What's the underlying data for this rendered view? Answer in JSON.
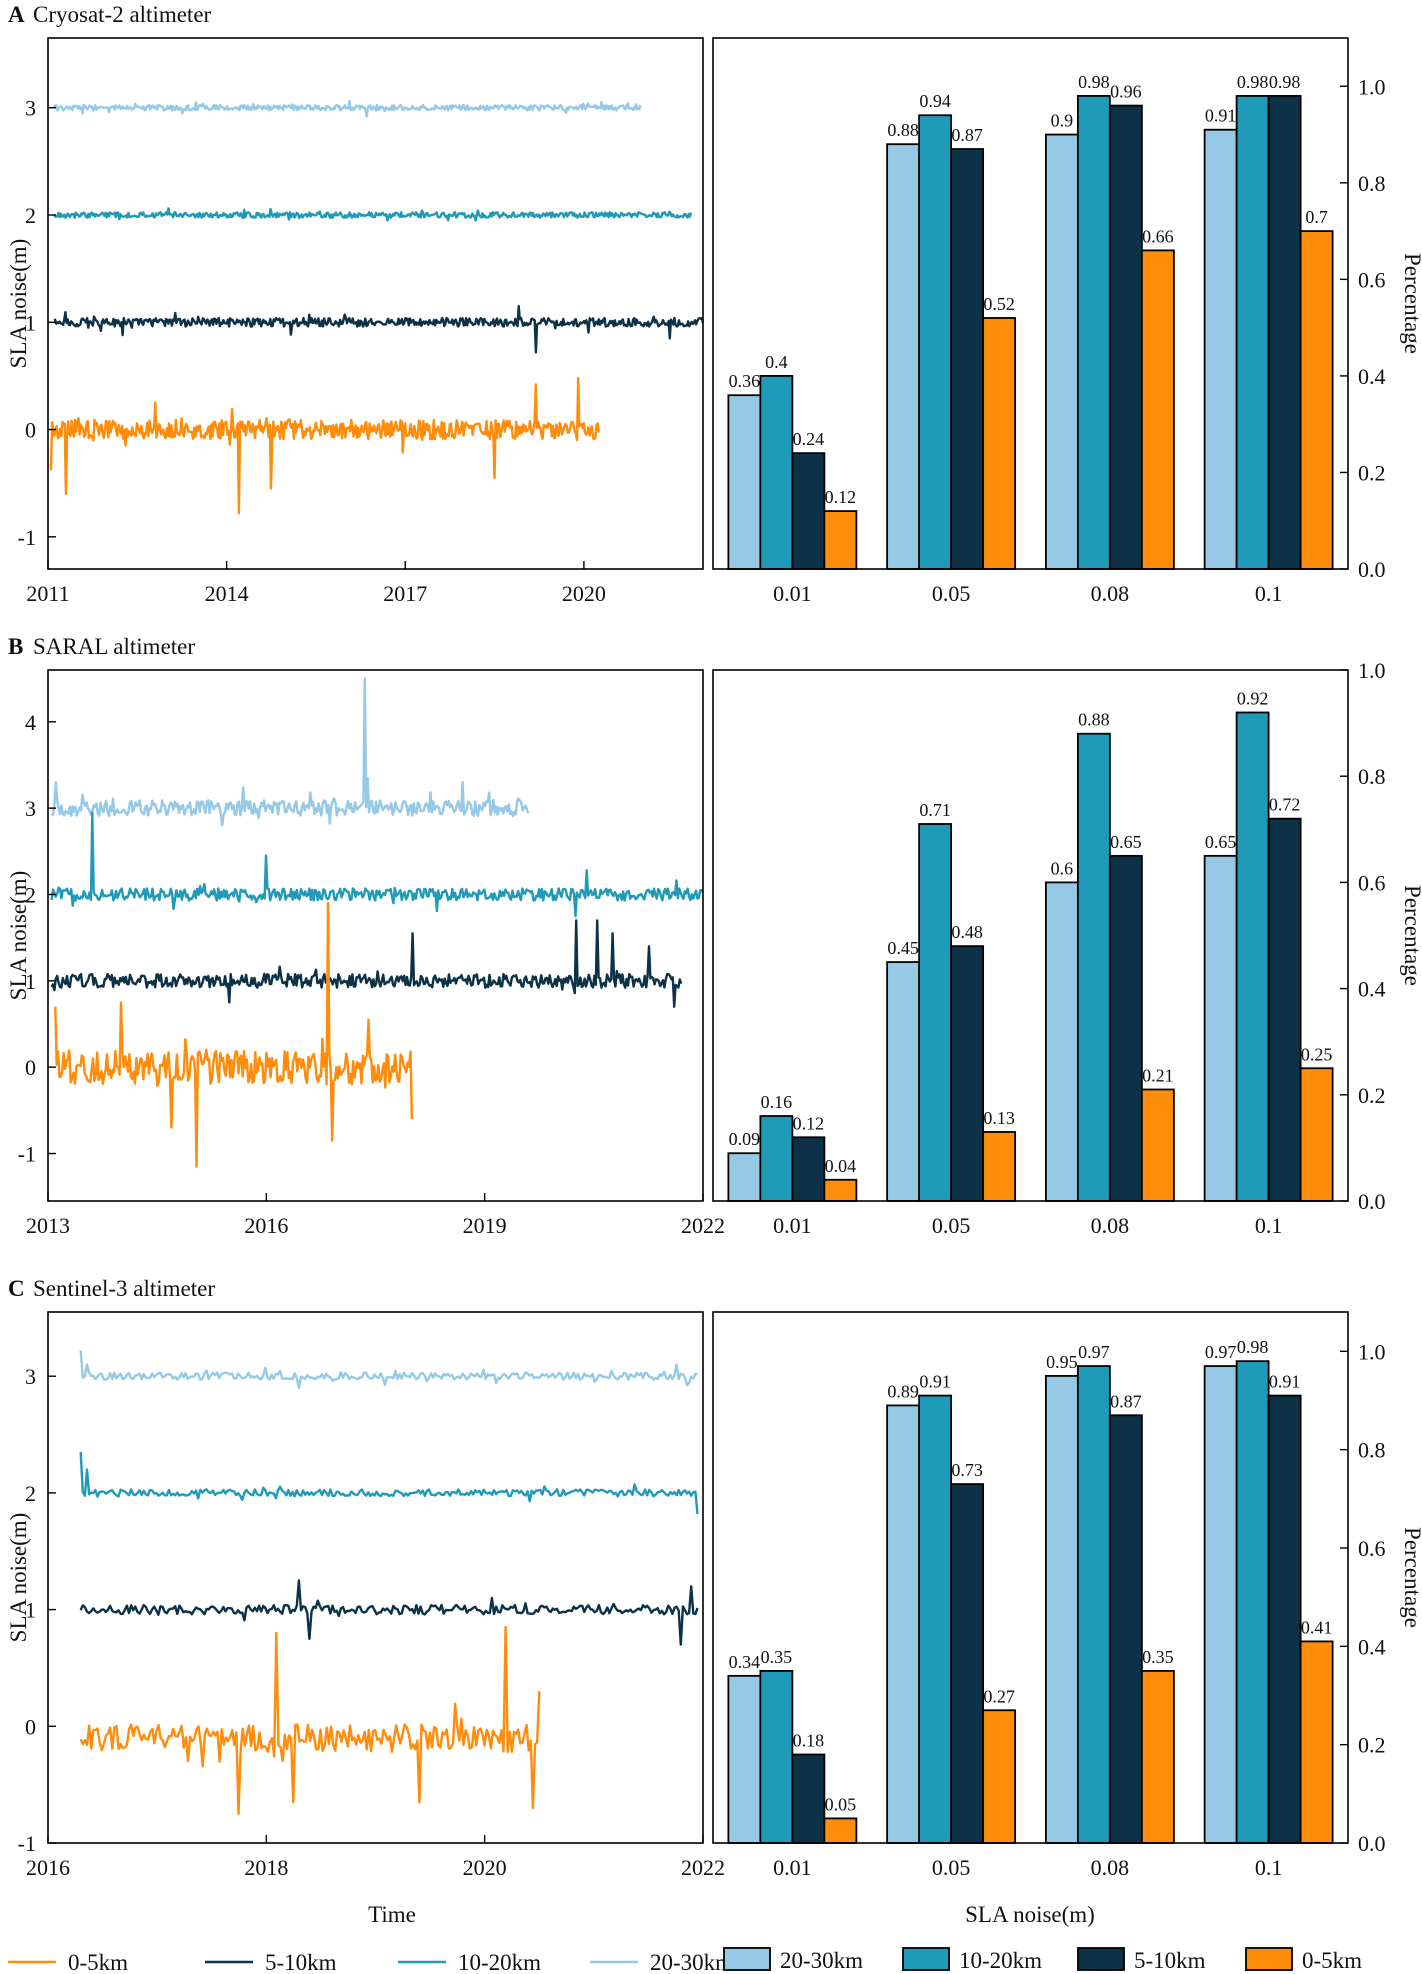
{
  "colors": {
    "c0_5": "#ff8c0a",
    "c5_10": "#0d3247",
    "c10_20": "#1f9ab8",
    "c20_30": "#96c9e6",
    "axis": "#000000"
  },
  "x_axis_title": "Time",
  "bar_x_axis_title": "SLA noise(m)",
  "legend": {
    "lines": [
      {
        "label": "0-5km",
        "color_key": "c0_5"
      },
      {
        "label": "5-10km",
        "color_key": "c5_10"
      },
      {
        "label": "10-20km",
        "color_key": "c10_20"
      },
      {
        "label": "20-30km",
        "color_key": "c20_30"
      }
    ],
    "bars": [
      {
        "label": "20-30km",
        "color_key": "c20_30"
      },
      {
        "label": "10-20km",
        "color_key": "c10_20"
      },
      {
        "label": "5-10km",
        "color_key": "c5_10"
      },
      {
        "label": "0-5km",
        "color_key": "c0_5"
      }
    ]
  },
  "chart_data": [
    {
      "panel": "A",
      "title": "Cryosat-2 altimeter",
      "line_chart": {
        "type": "line",
        "ylabel": "SLA noise(m)",
        "xlim": [
          2011,
          2022
        ],
        "xticks": [
          "2011",
          "2014",
          "2017",
          "2020"
        ],
        "xtick_values": [
          2011,
          2014,
          2017,
          2020
        ],
        "ylim": [
          -1.3,
          3.65
        ],
        "yticks": [
          "-1",
          "0",
          "1",
          "2",
          "3"
        ],
        "ytick_values": [
          -1,
          0,
          1,
          2,
          3
        ],
        "series": [
          {
            "name": "20-30km",
            "color_key": "c20_30",
            "start": 2011.1,
            "end": 2020.95,
            "baseline": 3.0,
            "noise": 0.025,
            "spikes": [
              [
                2016.35,
                -0.08
              ]
            ]
          },
          {
            "name": "10-20km",
            "color_key": "c10_20",
            "start": 2011.1,
            "end": 2021.8,
            "baseline": 2.0,
            "noise": 0.025,
            "spikes": []
          },
          {
            "name": "5-10km",
            "color_key": "c5_10",
            "start": 2011.1,
            "end": 2022.0,
            "baseline": 1.0,
            "noise": 0.04,
            "spikes": [
              [
                2012.25,
                -0.12
              ],
              [
                2018.9,
                0.15
              ],
              [
                2019.2,
                -0.28
              ],
              [
                2021.45,
                -0.15
              ]
            ]
          },
          {
            "name": "0-5km",
            "color_key": "c0_5",
            "start": 2011.05,
            "end": 2020.25,
            "baseline": 0.0,
            "noise": 0.09,
            "spikes": [
              [
                2011.05,
                -0.38
              ],
              [
                2011.3,
                -0.6
              ],
              [
                2014.2,
                -0.78
              ],
              [
                2014.75,
                -0.55
              ],
              [
                2018.5,
                -0.45
              ],
              [
                2019.2,
                0.42
              ],
              [
                2019.9,
                0.48
              ],
              [
                2012.8,
                0.25
              ]
            ]
          }
        ]
      },
      "bar_chart": {
        "type": "bar",
        "ylabel": "Percentage",
        "categories": [
          "0.01",
          "0.05",
          "0.08",
          "0.1"
        ],
        "ylim": [
          0.0,
          1.1
        ],
        "yticks": [
          "0.0",
          "0.2",
          "0.4",
          "0.6",
          "0.8",
          "1.0"
        ],
        "ytick_values": [
          0,
          0.2,
          0.4,
          0.6,
          0.8,
          1.0
        ],
        "series": [
          {
            "name": "20-30km",
            "color_key": "c20_30",
            "values": [
              0.36,
              0.88,
              0.9,
              0.91
            ],
            "labels": [
              "0.36",
              "0.88",
              "0.9",
              "0.91"
            ]
          },
          {
            "name": "10-20km",
            "color_key": "c10_20",
            "values": [
              0.4,
              0.94,
              0.98,
              0.98
            ],
            "labels": [
              "0.4",
              "0.94",
              "0.98",
              "0.98"
            ]
          },
          {
            "name": "5-10km",
            "color_key": "c5_10",
            "values": [
              0.24,
              0.87,
              0.96,
              0.98
            ],
            "labels": [
              "0.24",
              "0.87",
              "0.96",
              "0.98"
            ]
          },
          {
            "name": "0-5km",
            "color_key": "c0_5",
            "values": [
              0.12,
              0.52,
              0.66,
              0.7
            ],
            "labels": [
              "0.12",
              "0.52",
              "0.66",
              "0.7"
            ]
          }
        ]
      }
    },
    {
      "panel": "B",
      "title": "SARAL altimeter",
      "line_chart": {
        "type": "line",
        "ylabel": "SLA noise(m)",
        "xlim": [
          2013,
          2022
        ],
        "xticks": [
          "2013",
          "2016",
          "2019",
          "2022"
        ],
        "xtick_values": [
          2013,
          2016,
          2019,
          2022
        ],
        "ylim": [
          -1.55,
          4.6
        ],
        "yticks": [
          "-1",
          "0",
          "1",
          "2",
          "3",
          "4"
        ],
        "ytick_values": [
          -1,
          0,
          1,
          2,
          3,
          4
        ],
        "series": [
          {
            "name": "20-30km",
            "color_key": "c20_30",
            "start": 2013.05,
            "end": 2019.6,
            "baseline": 3.0,
            "noise": 0.09,
            "spikes": [
              [
                2017.35,
                1.5
              ],
              [
                2017.4,
                0.35
              ],
              [
                2018.7,
                0.3
              ],
              [
                2013.1,
                0.3
              ]
            ]
          },
          {
            "name": "10-20km",
            "color_key": "c10_20",
            "start": 2013.05,
            "end": 2022.0,
            "baseline": 2.0,
            "noise": 0.07,
            "spikes": [
              [
                2013.6,
                0.95
              ],
              [
                2016.0,
                0.45
              ],
              [
                2020.4,
                0.28
              ],
              [
                2020.25,
                -0.25
              ]
            ]
          },
          {
            "name": "5-10km",
            "color_key": "c5_10",
            "start": 2013.05,
            "end": 2021.7,
            "baseline": 1.0,
            "noise": 0.08,
            "spikes": [
              [
                2015.5,
                -0.25
              ],
              [
                2018.0,
                0.55
              ],
              [
                2020.25,
                0.7
              ],
              [
                2020.55,
                0.7
              ],
              [
                2020.75,
                0.55
              ],
              [
                2021.6,
                -0.3
              ],
              [
                2021.25,
                0.4
              ]
            ]
          },
          {
            "name": "0-5km",
            "color_key": "c0_5",
            "start": 2013.1,
            "end": 2018.0,
            "baseline": 0.0,
            "noise": 0.2,
            "spikes": [
              [
                2014.0,
                0.75
              ],
              [
                2014.7,
                -0.7
              ],
              [
                2015.05,
                -1.15
              ],
              [
                2016.85,
                1.9
              ],
              [
                2016.9,
                -0.85
              ],
              [
                2017.4,
                0.55
              ],
              [
                2018.0,
                -0.6
              ],
              [
                2013.1,
                0.7
              ]
            ]
          }
        ]
      },
      "bar_chart": {
        "type": "bar",
        "ylabel": "Percentage",
        "categories": [
          "0.01",
          "0.05",
          "0.08",
          "0.1"
        ],
        "ylim": [
          0.0,
          1.0
        ],
        "yticks": [
          "0.0",
          "0.2",
          "0.4",
          "0.6",
          "0.8",
          "1.0"
        ],
        "ytick_values": [
          0,
          0.2,
          0.4,
          0.6,
          0.8,
          1.0
        ],
        "series": [
          {
            "name": "20-30km",
            "color_key": "c20_30",
            "values": [
              0.09,
              0.45,
              0.6,
              0.65
            ],
            "labels": [
              "0.09",
              "0.45",
              "0.6",
              "0.65"
            ]
          },
          {
            "name": "10-20km",
            "color_key": "c10_20",
            "values": [
              0.16,
              0.71,
              0.88,
              0.92
            ],
            "labels": [
              "0.16",
              "0.71",
              "0.88",
              "0.92"
            ]
          },
          {
            "name": "5-10km",
            "color_key": "c5_10",
            "values": [
              0.12,
              0.48,
              0.65,
              0.72
            ],
            "labels": [
              "0.12",
              "0.48",
              "0.65",
              "0.72"
            ]
          },
          {
            "name": "0-5km",
            "color_key": "c0_5",
            "values": [
              0.04,
              0.13,
              0.21,
              0.25
            ],
            "labels": [
              "0.04",
              "0.13",
              "0.21",
              "0.25"
            ]
          }
        ]
      }
    },
    {
      "panel": "C",
      "title": "Sentinel-3 altimeter",
      "line_chart": {
        "type": "line",
        "ylabel": "SLA noise(m)",
        "xlim": [
          2016,
          2022
        ],
        "xticks": [
          "2016",
          "2018",
          "2020",
          "2022"
        ],
        "xtick_values": [
          2016,
          2018,
          2020,
          2022
        ],
        "ylim": [
          -1.0,
          3.55
        ],
        "yticks": [
          "-1",
          "0",
          "1",
          "2",
          "3"
        ],
        "ytick_values": [
          -1,
          0,
          1,
          2,
          3
        ],
        "series": [
          {
            "name": "20-30km",
            "color_key": "c20_30",
            "start": 2016.3,
            "end": 2021.95,
            "baseline": 3.0,
            "noise": 0.03,
            "spikes": [
              [
                2016.3,
                0.22
              ],
              [
                2016.35,
                0.1
              ],
              [
                2018.3,
                -0.1
              ],
              [
                2021.75,
                0.1
              ]
            ]
          },
          {
            "name": "10-20km",
            "color_key": "c10_20",
            "start": 2016.3,
            "end": 2021.95,
            "baseline": 2.0,
            "noise": 0.03,
            "spikes": [
              [
                2016.3,
                0.35
              ],
              [
                2016.35,
                0.2
              ],
              [
                2021.95,
                -0.18
              ]
            ]
          },
          {
            "name": "5-10km",
            "color_key": "c5_10",
            "start": 2016.3,
            "end": 2021.95,
            "baseline": 1.0,
            "noise": 0.04,
            "spikes": [
              [
                2018.3,
                0.25
              ],
              [
                2018.4,
                -0.25
              ],
              [
                2021.8,
                -0.3
              ],
              [
                2021.9,
                0.2
              ]
            ]
          },
          {
            "name": "0-5km",
            "color_key": "c0_5",
            "start": 2016.3,
            "end": 2020.5,
            "baseline": -0.1,
            "noise": 0.12,
            "spikes": [
              [
                2017.75,
                -0.65
              ],
              [
                2018.1,
                0.9
              ],
              [
                2018.25,
                -0.55
              ],
              [
                2019.4,
                -0.55
              ],
              [
                2020.2,
                0.95
              ],
              [
                2020.45,
                -0.6
              ],
              [
                2020.5,
                0.4
              ]
            ]
          }
        ]
      },
      "bar_chart": {
        "type": "bar",
        "ylabel": "Percentage",
        "categories": [
          "0.01",
          "0.05",
          "0.08",
          "0.1"
        ],
        "ylim": [
          0.0,
          1.08
        ],
        "yticks": [
          "0.0",
          "0.2",
          "0.4",
          "0.6",
          "0.8",
          "1.0"
        ],
        "ytick_values": [
          0,
          0.2,
          0.4,
          0.6,
          0.8,
          1.0
        ],
        "series": [
          {
            "name": "20-30km",
            "color_key": "c20_30",
            "values": [
              0.34,
              0.89,
              0.95,
              0.97
            ],
            "labels": [
              "0.34",
              "0.89",
              "0.95",
              "0.97"
            ]
          },
          {
            "name": "10-20km",
            "color_key": "c10_20",
            "values": [
              0.35,
              0.91,
              0.97,
              0.98
            ],
            "labels": [
              "0.35",
              "0.91",
              "0.97",
              "0.98"
            ]
          },
          {
            "name": "5-10km",
            "color_key": "c5_10",
            "values": [
              0.18,
              0.73,
              0.87,
              0.91
            ],
            "labels": [
              "0.18",
              "0.73",
              "0.87",
              "0.91"
            ]
          },
          {
            "name": "0-5km",
            "color_key": "c0_5",
            "values": [
              0.05,
              0.27,
              0.35,
              0.41
            ],
            "labels": [
              "0.05",
              "0.27",
              "0.35",
              "0.41"
            ]
          }
        ]
      }
    }
  ]
}
